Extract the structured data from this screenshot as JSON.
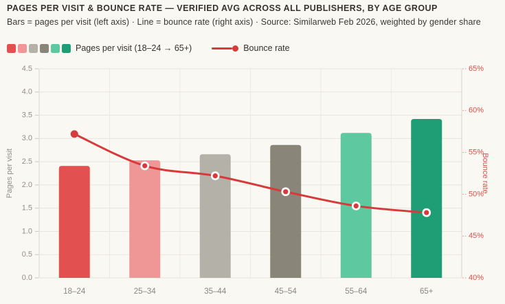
{
  "header": {
    "title": "PAGES PER VISIT & BOUNCE RATE — VERIFIED AVG ACROSS ALL PUBLISHERS, BY AGE GROUP",
    "subtitle": "Bars = pages per visit (left axis) · Line = bounce rate (right axis) · Source: Similarweb Feb 2026, weighted by gender share"
  },
  "legend": {
    "bars_label": "Pages per visit (18–24 → 65+)",
    "line_label": "Bounce rate"
  },
  "chart_data": {
    "type": "combo-bar-line",
    "categories": [
      "18–24",
      "25–34",
      "35–44",
      "45–54",
      "55–64",
      "65+"
    ],
    "series": [
      {
        "name": "Pages per visit",
        "type": "bar",
        "axis": "left",
        "values": [
          2.41,
          2.53,
          2.66,
          2.86,
          3.12,
          3.42
        ],
        "colors": [
          "#e25050",
          "#ef9697",
          "#b4b1a9",
          "#898579",
          "#5ec9a1",
          "#1f9e75"
        ]
      },
      {
        "name": "Bounce rate",
        "type": "line",
        "axis": "right",
        "values": [
          57.2,
          53.4,
          52.2,
          50.3,
          48.6,
          47.8
        ],
        "color": "#d63a3a"
      }
    ],
    "left_axis": {
      "label": "Pages per visit",
      "min": 0,
      "max": 4.5,
      "ticks": [
        "0.0",
        "0.5",
        "1.0",
        "1.5",
        "2.0",
        "2.5",
        "3.0",
        "3.5",
        "4.0",
        "4.5"
      ]
    },
    "right_axis": {
      "label": "Bounce rate",
      "min": 40,
      "max": 65,
      "ticks": [
        "40%",
        "45%",
        "50%",
        "55%",
        "60%",
        "65%"
      ]
    },
    "grid": true,
    "legend_position": "top"
  },
  "colors": {
    "background": "#faf8f2",
    "title": "#36332d",
    "grid_h": "#e8e5de",
    "grid_v": "#edeae3",
    "axis_line": "#d8d5ce",
    "left_tick_text": "#918e86",
    "left_tick_mark": "#c9c6bf",
    "x_label": "#8a867e",
    "right_tick_text": "#d94f4a",
    "right_tick_mark": "#dfa39e",
    "line": "#d63a3a",
    "marker_ring": "#ffffff"
  }
}
